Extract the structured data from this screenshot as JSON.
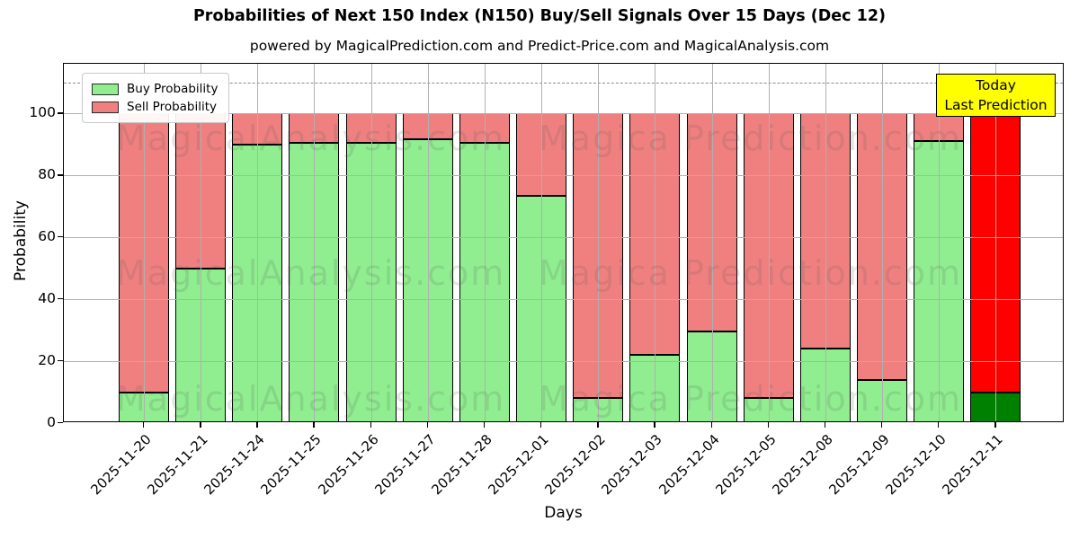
{
  "title": "Probabilities of Next 150 Index (N150) Buy/Sell Signals Over 15 Days (Dec 12)",
  "subtitle": "powered by MagicalPrediction.com and Predict-Price.com and MagicalAnalysis.com",
  "legend": {
    "items": [
      {
        "label": "Buy Probability",
        "color": "#90EE90"
      },
      {
        "label": "Sell Probability",
        "color": "#F08080"
      }
    ]
  },
  "today_annotation": {
    "line1": "Today",
    "line2": "Last Prediction",
    "bg_color": "#FFFF00"
  },
  "watermarks": {
    "left_text": "MagicalAnalysis.com",
    "right_text": "Magica Prediction.com"
  },
  "chart_data": {
    "type": "bar",
    "stacked": true,
    "title": "Probabilities of Next 150 Index (N150) Buy/Sell Signals Over 15 Days (Dec 12)",
    "xlabel": "Days",
    "ylabel": "Probability",
    "ylim": [
      0,
      116
    ],
    "yticks": [
      0,
      20,
      40,
      60,
      80,
      100
    ],
    "grid": true,
    "legend_position": "upper left",
    "dashed_line_y": 110,
    "categories": [
      "2025-11-20",
      "2025-11-21",
      "2025-11-24",
      "2025-11-25",
      "2025-11-26",
      "2025-11-27",
      "2025-11-28",
      "2025-12-01",
      "2025-12-02",
      "2025-12-03",
      "2025-12-04",
      "2025-12-05",
      "2025-12-08",
      "2025-12-09",
      "2025-12-10",
      "2025-12-11"
    ],
    "series": [
      {
        "name": "Buy Probability",
        "color": "#90EE90",
        "values": [
          10,
          50,
          90,
          90.5,
          90.5,
          91.5,
          90.5,
          73.5,
          8,
          22,
          29.5,
          8,
          24,
          14,
          91,
          10
        ]
      },
      {
        "name": "Sell Probability",
        "color": "#F08080",
        "values": [
          90,
          50,
          10,
          9.5,
          9.5,
          8.5,
          9.5,
          26.5,
          92,
          78,
          70.5,
          92,
          76,
          86,
          9,
          90
        ]
      }
    ],
    "today_bar": {
      "index": 15,
      "buy_color": "#008000",
      "sell_color": "#FF0000",
      "cap_color": "#FFA500",
      "cap_from": 100,
      "cap_to": 102
    }
  }
}
